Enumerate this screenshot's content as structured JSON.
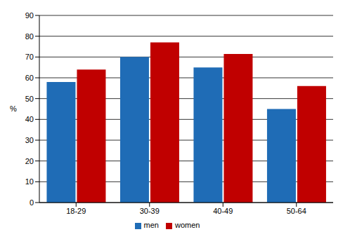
{
  "chart_data": {
    "type": "bar",
    "y_label": "%",
    "categories": [
      "18-29",
      "30-39",
      "40-49",
      "50-64"
    ],
    "series": [
      {
        "name": "men",
        "color": "#1f6cb6",
        "values": [
          58,
          70,
          65,
          45
        ]
      },
      {
        "name": "women",
        "color": "#c00000",
        "values": [
          64,
          77,
          71.5,
          56
        ]
      }
    ],
    "ylim": [
      0,
      90
    ],
    "yticks": [
      0,
      10,
      20,
      30,
      40,
      50,
      60,
      70,
      80,
      90
    ],
    "grid": true,
    "legend": "bottom"
  }
}
